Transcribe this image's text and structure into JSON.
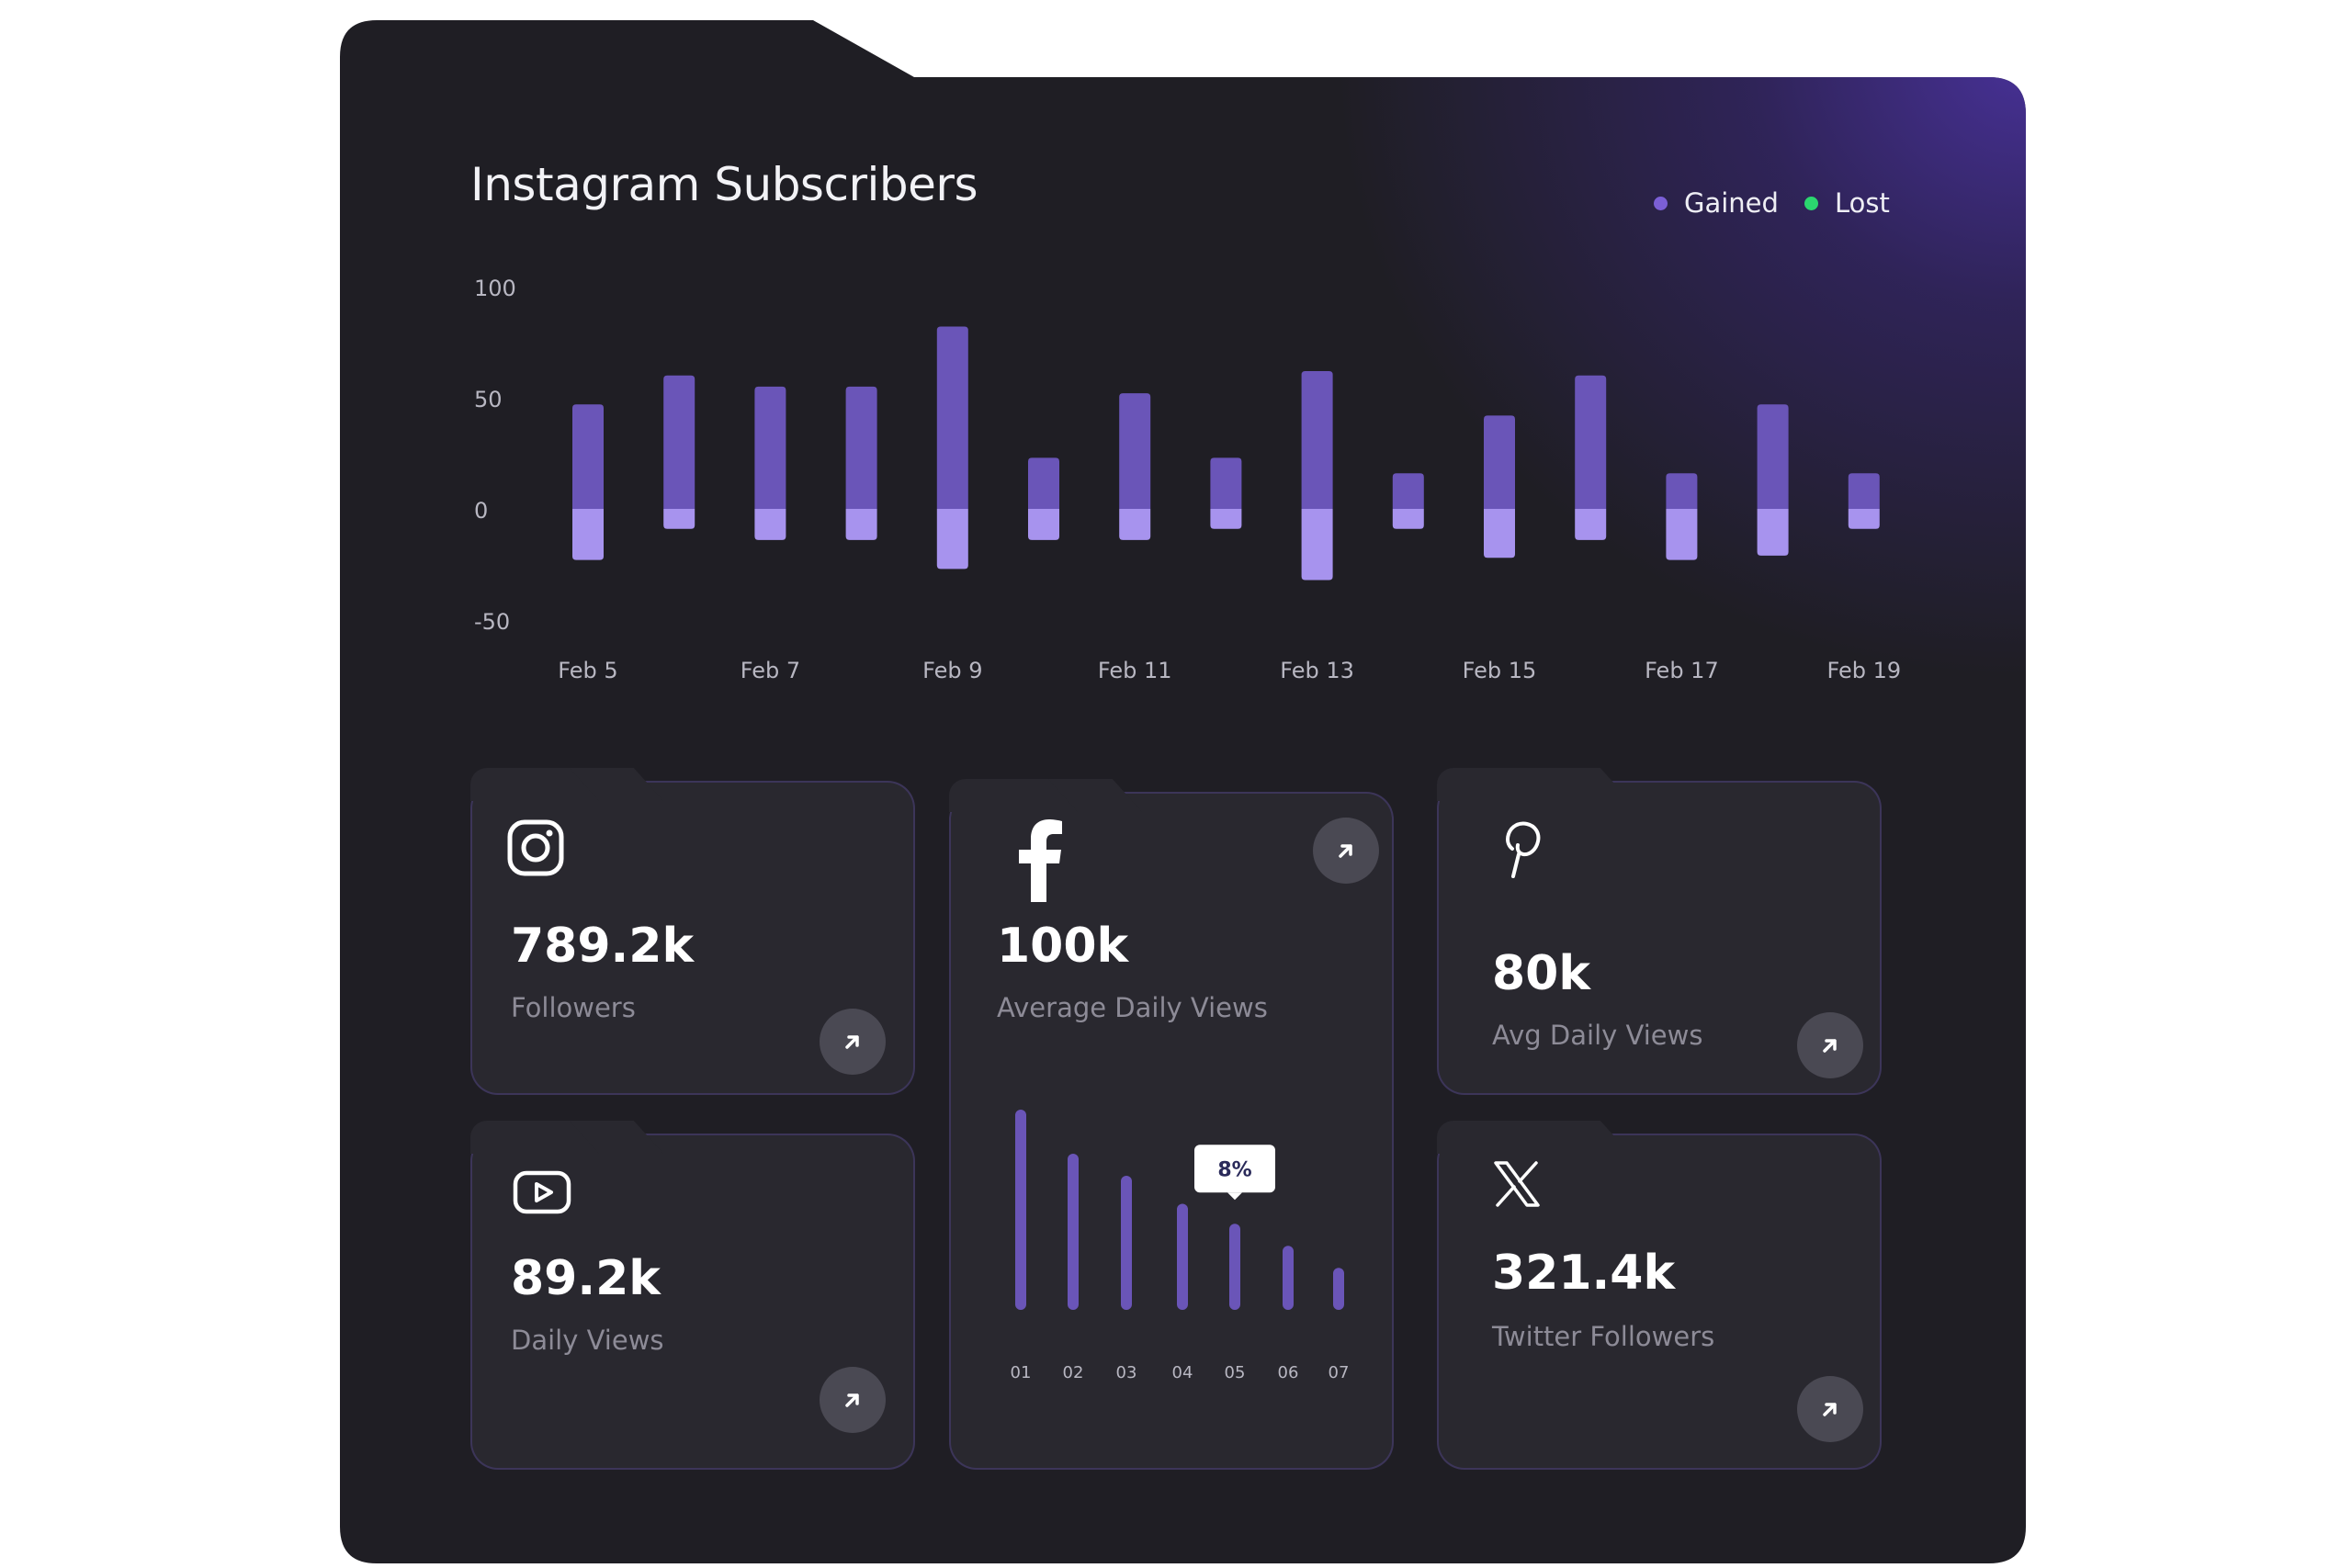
{
  "title": "Instagram Subscribers",
  "legend": [
    {
      "label": "Gained",
      "color": "#7b5fd6"
    },
    {
      "label": "Lost",
      "color": "#2bd66f"
    }
  ],
  "chart_data": {
    "type": "bar",
    "title": "Instagram Subscribers",
    "y_ticks": [
      "100",
      "50",
      "0",
      "-50"
    ],
    "ylim": [
      -50,
      100
    ],
    "x_labels": [
      "Feb 5",
      "Feb 7",
      "Feb 9",
      "Feb 11",
      "Feb 13",
      "Feb 15",
      "Feb 17",
      "Feb 19"
    ],
    "categories": [
      "Feb 5",
      "Feb 6",
      "Feb 7",
      "Feb 8",
      "Feb 9",
      "Feb 10",
      "Feb 11",
      "Feb 12",
      "Feb 13",
      "Feb 14",
      "Feb 15",
      "Feb 16",
      "Feb 17",
      "Feb 18",
      "Feb 19"
    ],
    "series": [
      {
        "name": "Gained",
        "color": "#6a55b8",
        "values": [
          47,
          60,
          55,
          55,
          82,
          23,
          52,
          23,
          62,
          16,
          42,
          60,
          16,
          47,
          16
        ]
      },
      {
        "name": "Lost",
        "color": "#a793ee",
        "values": [
          -23,
          -9,
          -14,
          -14,
          -27,
          -14,
          -14,
          -9,
          -32,
          -9,
          -22,
          -14,
          -23,
          -21,
          -9
        ]
      }
    ]
  },
  "cards": {
    "instagram": {
      "value": "789.2k",
      "label": "Followers"
    },
    "facebook": {
      "value": "100k",
      "label": "Average Daily Views",
      "mini_chart": {
        "type": "bar",
        "categories": [
          "01",
          "02",
          "03",
          "04",
          "05",
          "06",
          "07"
        ],
        "values": [
          100,
          78,
          67,
          53,
          43,
          32,
          21
        ],
        "tooltip": "8%",
        "highlight_index": 4
      }
    },
    "pinterest": {
      "value": "80k",
      "label": "Avg Daily Views"
    },
    "youtube": {
      "value": "89.2k",
      "label": "Daily Views"
    },
    "twitter": {
      "value": "321.4k",
      "label": "Twitter Followers"
    }
  }
}
